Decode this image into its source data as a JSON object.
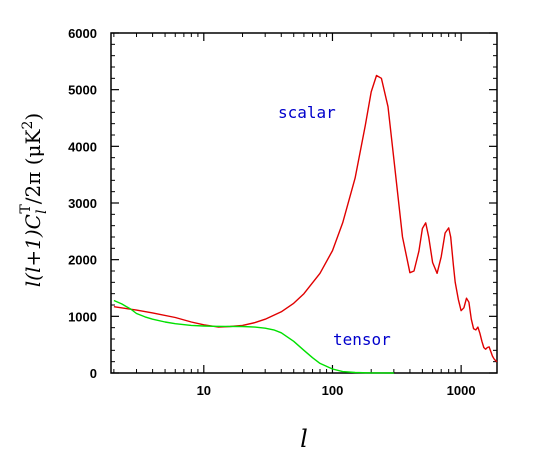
{
  "chart_data": {
    "type": "line",
    "xlabel": "l",
    "ylabel": "l(l+1)C_l^T/2π (μK²)",
    "ylabel_parts": {
      "lead": "l(l+1)C",
      "sub": "l",
      "sup": "T",
      "tail": "/2π  (μK",
      "unit_sup": "2",
      "close": ")"
    },
    "x_scale": "log",
    "xlim": [
      1.9,
      1900
    ],
    "ylim": [
      0,
      6000
    ],
    "x_ticks": [
      10,
      100,
      1000
    ],
    "x_tick_labels": [
      "10",
      "100",
      "1000"
    ],
    "y_ticks": [
      0,
      1000,
      2000,
      3000,
      4000,
      5000,
      6000
    ],
    "y_tick_labels": [
      "0",
      "1000",
      "2000",
      "3000",
      "4000",
      "5000",
      "6000"
    ],
    "grid": false,
    "series": [
      {
        "name": "scalar",
        "color": "#e00000",
        "x": [
          2,
          3,
          4,
          6,
          8,
          10,
          13,
          16,
          20,
          25,
          30,
          40,
          50,
          60,
          80,
          100,
          120,
          150,
          180,
          200,
          220,
          240,
          270,
          300,
          350,
          400,
          430,
          470,
          500,
          530,
          560,
          600,
          650,
          700,
          750,
          800,
          830,
          870,
          900,
          950,
          1000,
          1050,
          1100,
          1150,
          1200,
          1250,
          1300,
          1350,
          1400,
          1450,
          1500,
          1550,
          1600,
          1650,
          1700,
          1750,
          1800,
          1850,
          1900
        ],
        "y": [
          1170,
          1110,
          1060,
          980,
          900,
          850,
          810,
          820,
          840,
          890,
          950,
          1080,
          1230,
          1400,
          1760,
          2160,
          2650,
          3440,
          4370,
          4960,
          5250,
          5200,
          4700,
          3770,
          2400,
          1770,
          1800,
          2150,
          2550,
          2650,
          2400,
          1950,
          1760,
          2050,
          2470,
          2560,
          2400,
          1900,
          1600,
          1300,
          1100,
          1150,
          1320,
          1250,
          950,
          780,
          760,
          810,
          700,
          560,
          450,
          420,
          450,
          460,
          380,
          300,
          250,
          220,
          200
        ]
      },
      {
        "name": "tensor",
        "color": "#00e000",
        "x": [
          2,
          2.3,
          2.7,
          3,
          3.5,
          4,
          5,
          6,
          8,
          10,
          12,
          15,
          20,
          25,
          30,
          35,
          40,
          50,
          60,
          70,
          80,
          100,
          120,
          150,
          200,
          250,
          300
        ],
        "y": [
          1280,
          1220,
          1130,
          1050,
          990,
          950,
          900,
          870,
          840,
          830,
          825,
          822,
          820,
          810,
          790,
          760,
          710,
          560,
          400,
          270,
          170,
          70,
          25,
          8,
          2,
          1,
          0
        ]
      }
    ]
  }
}
